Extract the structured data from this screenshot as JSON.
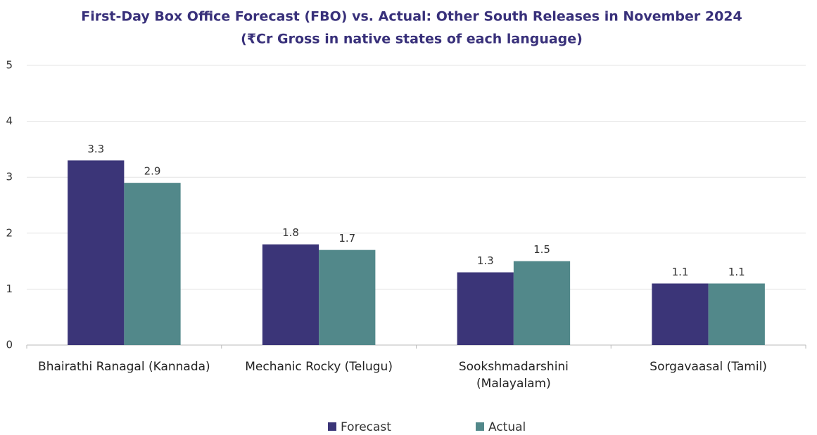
{
  "chart_data": {
    "type": "bar",
    "title": "First-Day Box Office Forecast (FBO) vs. Actual: Other South Releases in November 2024",
    "subtitle": "(₹Cr Gross in native states of each language)",
    "categories": [
      "Bhairathi Ranagal (Kannada)",
      "Mechanic Rocky (Telugu)",
      "Sookshmadarshini (Malayalam)",
      "Sorgavaasal (Tamil)"
    ],
    "series": [
      {
        "name": "Forecast",
        "color": "#3b3578",
        "values": [
          3.3,
          1.8,
          1.3,
          1.1
        ]
      },
      {
        "name": "Actual",
        "color": "#52888a",
        "values": [
          2.9,
          1.7,
          1.5,
          1.1
        ]
      }
    ],
    "ylim": [
      0,
      5
    ],
    "yticks": [
      0,
      1,
      2,
      3,
      4,
      5
    ],
    "grid": true,
    "legend": "bottom"
  }
}
